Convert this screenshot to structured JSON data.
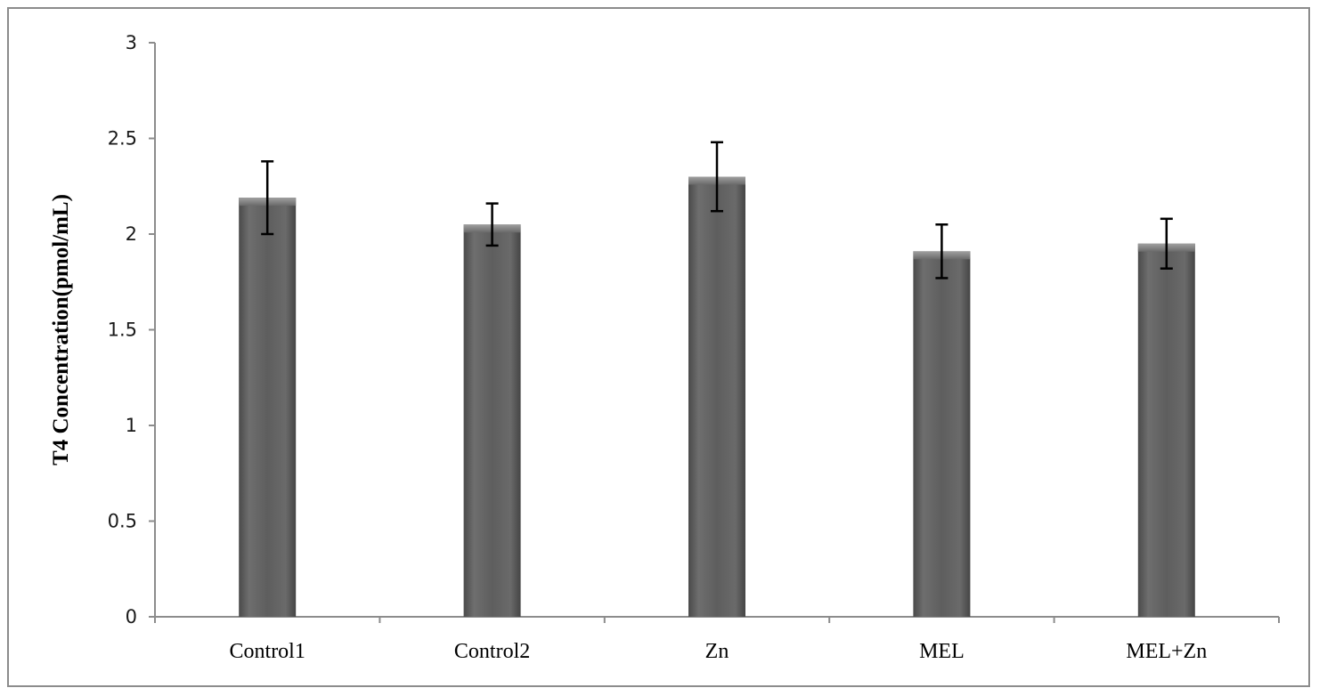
{
  "chart_data": {
    "type": "bar",
    "title": "",
    "xlabel": "",
    "ylabel": "T4 Concentration(pmol/mL)",
    "categories": [
      "Control1",
      "Control2",
      "Zn",
      "MEL",
      "MEL+Zn"
    ],
    "values": [
      2.19,
      2.05,
      2.3,
      1.91,
      1.95
    ],
    "error": [
      0.19,
      0.11,
      0.18,
      0.14,
      0.13
    ],
    "ylim": [
      0,
      3
    ],
    "yticks": [
      0,
      0.5,
      1,
      1.5,
      2,
      2.5,
      3
    ],
    "ytick_labels": [
      "0",
      "0.5",
      "1",
      "1.5",
      "2",
      "2.5",
      "3"
    ],
    "grid": false,
    "legend": "none",
    "bar_color": "#5f5f5f"
  }
}
